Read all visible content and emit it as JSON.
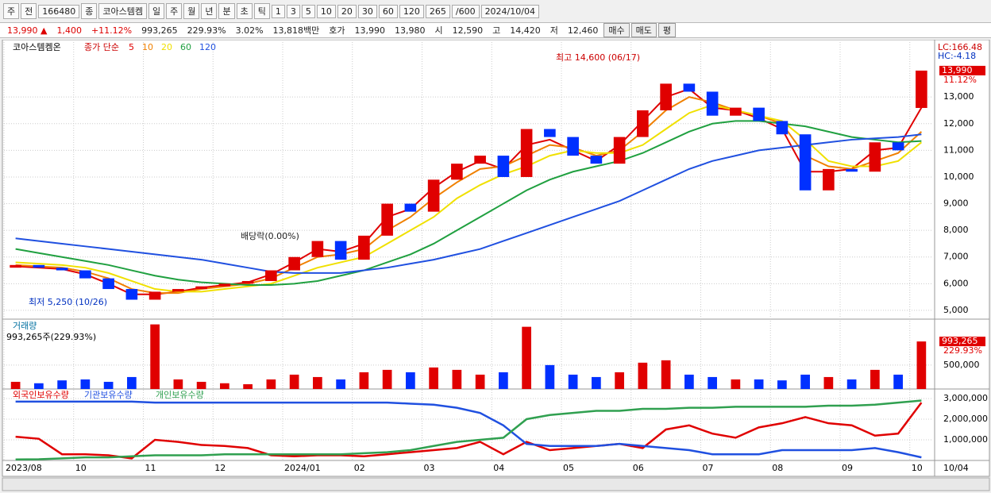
{
  "toolbar": {
    "row1": [
      "주",
      "전",
      "166480",
      "종",
      "코아스템켐",
      "일",
      "주",
      "월",
      "년",
      "분",
      "초",
      "틱",
      "1",
      "3",
      "5",
      "10",
      "20",
      "30",
      "60",
      "120",
      "265",
      "/600",
      "2024/10/04"
    ],
    "row2": [
      "13,990 ▲",
      "1,400",
      "+11.12%",
      "993,265",
      "229.93%",
      "3.02%",
      "13,818백만",
      "호가",
      "13,990",
      "13,980",
      "시",
      "12,590",
      "고",
      "14,420",
      "저",
      "12,460",
      "매수",
      "매도",
      "평"
    ]
  },
  "chart_data": [
    {
      "type": "candlestick",
      "legend_title": "코아스템켐온",
      "legend_label": "종가 단순",
      "up_color": "#e00000",
      "down_color": "#0030ff",
      "open": [
        6600,
        6700,
        6600,
        6500,
        6200,
        5800,
        5400,
        5700,
        5800,
        5900,
        6000,
        6100,
        6500,
        7000,
        7600,
        6900,
        7800,
        9000,
        8700,
        9900,
        10500,
        10800,
        10000,
        11800,
        11500,
        10800,
        10500,
        11500,
        12500,
        13500,
        13200,
        12300,
        12600,
        12100,
        11600,
        9500,
        10300,
        10200,
        11300,
        12590
      ],
      "close": [
        6700,
        6600,
        6500,
        6200,
        5800,
        5400,
        5700,
        5800,
        5900,
        6000,
        6100,
        6500,
        7000,
        7600,
        6900,
        7800,
        9000,
        8700,
        9900,
        10500,
        10800,
        10000,
        11800,
        11500,
        10800,
        10500,
        11500,
        12500,
        13500,
        13200,
        12300,
        12600,
        12100,
        11600,
        9500,
        10300,
        10200,
        11300,
        11000,
        13990
      ],
      "series": [
        {
          "name": "5",
          "color": "#e00000",
          "values": [
            6650,
            6600,
            6550,
            6350,
            6000,
            5600,
            5600,
            5700,
            5850,
            5950,
            6050,
            6350,
            6800,
            7300,
            7200,
            7500,
            8500,
            8800,
            9600,
            10200,
            10600,
            10300,
            11200,
            11400,
            11000,
            10600,
            11200,
            12100,
            13000,
            13300,
            12600,
            12500,
            12200,
            11800,
            10200,
            10200,
            10300,
            11000,
            11100,
            12600
          ]
        },
        {
          "name": "10",
          "color": "#f08000",
          "values": [
            6700,
            6650,
            6600,
            6450,
            6200,
            5800,
            5650,
            5650,
            5800,
            5900,
            6000,
            6200,
            6600,
            7000,
            7100,
            7300,
            8000,
            8500,
            9200,
            9800,
            10300,
            10400,
            10800,
            11200,
            11100,
            10800,
            11000,
            11700,
            12500,
            13000,
            12800,
            12500,
            12300,
            12000,
            10800,
            10400,
            10300,
            10600,
            10900,
            11700
          ]
        },
        {
          "name": "20",
          "color": "#f0e000",
          "values": [
            6800,
            6750,
            6700,
            6600,
            6400,
            6100,
            5800,
            5700,
            5700,
            5800,
            5900,
            6000,
            6300,
            6600,
            6800,
            7000,
            7500,
            8000,
            8500,
            9200,
            9700,
            10100,
            10400,
            10800,
            11000,
            10900,
            10900,
            11200,
            11800,
            12400,
            12700,
            12500,
            12300,
            12100,
            11400,
            10600,
            10400,
            10400,
            10600,
            11300
          ]
        },
        {
          "name": "60",
          "color": "#20a040",
          "values": [
            7300,
            7150,
            7000,
            6850,
            6700,
            6500,
            6300,
            6150,
            6050,
            6000,
            5950,
            5950,
            6000,
            6100,
            6300,
            6500,
            6800,
            7100,
            7500,
            8000,
            8500,
            9000,
            9500,
            9900,
            10200,
            10400,
            10600,
            10900,
            11300,
            11700,
            12000,
            12100,
            12100,
            12000,
            11900,
            11700,
            11500,
            11400,
            11300,
            11350
          ]
        },
        {
          "name": "120",
          "color": "#2050e0",
          "values": [
            7700,
            7600,
            7500,
            7400,
            7300,
            7200,
            7100,
            7000,
            6900,
            6750,
            6600,
            6450,
            6400,
            6400,
            6400,
            6500,
            6600,
            6750,
            6900,
            7100,
            7300,
            7600,
            7900,
            8200,
            8500,
            8800,
            9100,
            9500,
            9900,
            10300,
            10600,
            10800,
            11000,
            11100,
            11200,
            11300,
            11400,
            11450,
            11500,
            11600
          ]
        }
      ],
      "ylim": [
        4730,
        15000
      ],
      "yticks": [
        {
          "value": 5000,
          "label": "5,000"
        },
        {
          "value": 6000,
          "label": "6,000"
        },
        {
          "value": 7000,
          "label": "7,000"
        },
        {
          "value": 8000,
          "label": "8,000"
        },
        {
          "value": 9000,
          "label": "9,000"
        },
        {
          "value": 10000,
          "label": "10,000"
        },
        {
          "value": 11000,
          "label": "11,000"
        },
        {
          "value": 12000,
          "label": "12,000"
        },
        {
          "value": 13000,
          "label": "13,000"
        }
      ],
      "grid": true,
      "annotations": [
        "최고 14,600 (06/17)",
        "최저 5,250 (10/26)",
        "배당락(0.00%)"
      ],
      "lc": "LC:166.48",
      "hc": "HC:-4.18",
      "last_price": {
        "value": 13990,
        "label": "13,990"
      },
      "change_label": "11.12%"
    },
    {
      "type": "bar",
      "title": "거래량",
      "subtitle": "993,265주(229.93%)",
      "values": [
        150000,
        120000,
        180000,
        200000,
        150000,
        250000,
        1350000,
        200000,
        150000,
        120000,
        100000,
        200000,
        300000,
        250000,
        200000,
        350000,
        400000,
        350000,
        450000,
        400000,
        300000,
        350000,
        1300000,
        500000,
        300000,
        250000,
        350000,
        550000,
        600000,
        300000,
        250000,
        200000,
        200000,
        180000,
        300000,
        250000,
        200000,
        400000,
        300000,
        993265
      ],
      "ylim": [
        0,
        1410000
      ],
      "yticks": [
        {
          "value": 500000,
          "label": "500,000"
        }
      ],
      "last_value": {
        "value": 993265,
        "label": "993,265"
      },
      "ratio_label": "229.93%"
    },
    {
      "type": "line",
      "categories": [
        "2023/08",
        null,
        null,
        "10",
        null,
        null,
        "11",
        null,
        null,
        "12",
        null,
        null,
        "2024/01",
        null,
        null,
        "02",
        null,
        null,
        "03",
        null,
        null,
        "04",
        null,
        null,
        "05",
        null,
        null,
        "06",
        null,
        null,
        "07",
        null,
        null,
        "08",
        null,
        null,
        "09",
        null,
        null,
        "10"
      ],
      "series": [
        {
          "name": "외국인보유수량",
          "color": "#e00000",
          "values": [
            1150000,
            1050000,
            300000,
            300000,
            250000,
            100000,
            1000000,
            900000,
            750000,
            700000,
            600000,
            250000,
            200000,
            250000,
            250000,
            200000,
            300000,
            400000,
            500000,
            600000,
            900000,
            300000,
            900000,
            500000,
            600000,
            700000,
            800000,
            600000,
            1500000,
            1700000,
            1300000,
            1100000,
            1600000,
            1800000,
            2100000,
            1800000,
            1700000,
            1200000,
            1300000,
            2800000
          ]
        },
        {
          "name": "기관보유수량",
          "color": "#2050e0",
          "values": [
            2850000,
            2850000,
            2850000,
            2850000,
            2850000,
            2850000,
            2800000,
            2800000,
            2800000,
            2800000,
            2800000,
            2800000,
            2800000,
            2800000,
            2800000,
            2800000,
            2800000,
            2750000,
            2700000,
            2550000,
            2300000,
            1700000,
            800000,
            700000,
            700000,
            700000,
            800000,
            700000,
            600000,
            500000,
            300000,
            300000,
            300000,
            500000,
            500000,
            500000,
            500000,
            600000,
            400000,
            150000
          ]
        },
        {
          "name": "개인보유수량",
          "color": "#30a050",
          "values": [
            50000,
            60000,
            100000,
            150000,
            150000,
            200000,
            250000,
            250000,
            250000,
            300000,
            300000,
            300000,
            300000,
            300000,
            300000,
            350000,
            400000,
            500000,
            700000,
            900000,
            1000000,
            1100000,
            2000000,
            2200000,
            2300000,
            2400000,
            2400000,
            2500000,
            2500000,
            2550000,
            2550000,
            2600000,
            2600000,
            2600000,
            2600000,
            2650000,
            2650000,
            2700000,
            2800000,
            2900000
          ]
        }
      ],
      "ylim": [
        0,
        3190000
      ],
      "yticks": [
        {
          "value": 1000000,
          "label": "1,000,000"
        },
        {
          "value": 2000000,
          "label": "2,000,000"
        },
        {
          "value": 3000000,
          "label": "3,000,000"
        }
      ],
      "end_label": "10/04"
    }
  ]
}
